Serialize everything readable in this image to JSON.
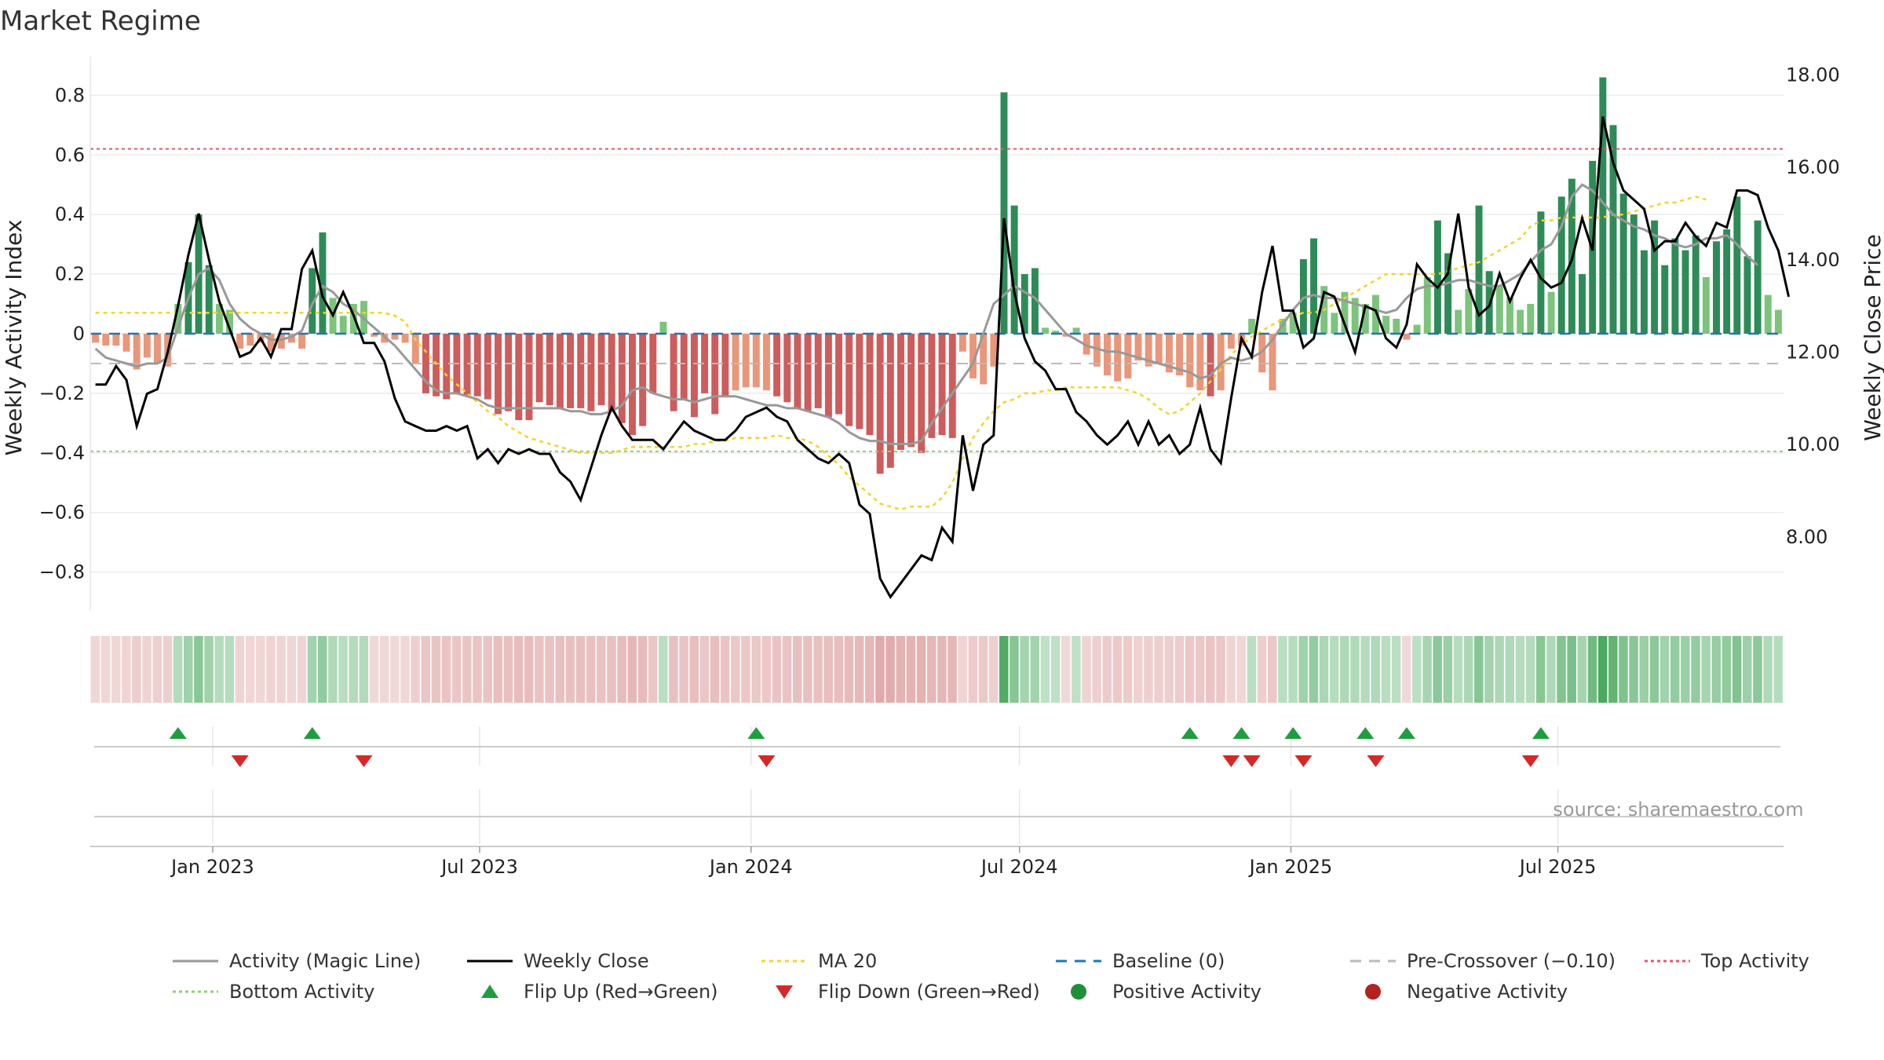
{
  "title": "Market Regime",
  "source": "source: sharemaestro.com",
  "chart_data": {
    "type": "bar",
    "ylabel_left": "Weekly Activity Index",
    "ylabel_right": "Weekly Close Price",
    "left_ticks": [
      "0.8",
      "0.6",
      "0.4",
      "0.2",
      "0",
      "−0.2",
      "−0.4",
      "−0.6",
      "−0.8"
    ],
    "right_ticks": [
      "18.00",
      "16.00",
      "14.00",
      "12.00",
      "10.00",
      "8.00"
    ],
    "ylim_left": [
      -0.93,
      0.93
    ],
    "ylim_right": [
      6.4,
      18.4
    ],
    "x_start": "2022-10-10",
    "x_tick_labels": [
      {
        "label": "Jan 2023",
        "date": "2023-01-01"
      },
      {
        "label": "Jul 2023",
        "date": "2023-07-01"
      },
      {
        "label": "Jan 2024",
        "date": "2024-01-01"
      },
      {
        "label": "Jul 2024",
        "date": "2024-07-01"
      },
      {
        "label": "Jan 2025",
        "date": "2025-01-01"
      },
      {
        "label": "Jul 2025",
        "date": "2025-07-01"
      }
    ],
    "activity": [
      -0.03,
      -0.04,
      -0.04,
      -0.06,
      -0.12,
      -0.08,
      -0.1,
      -0.11,
      0.1,
      0.24,
      0.4,
      0.23,
      0.1,
      0.08,
      -0.05,
      -0.04,
      -0.03,
      -0.06,
      -0.05,
      -0.03,
      -0.05,
      0.22,
      0.34,
      0.12,
      0.06,
      0.1,
      0.11,
      -0.01,
      -0.03,
      -0.02,
      -0.03,
      -0.1,
      -0.2,
      -0.21,
      -0.22,
      -0.2,
      -0.21,
      -0.21,
      -0.22,
      -0.27,
      -0.26,
      -0.29,
      -0.29,
      -0.23,
      -0.24,
      -0.25,
      -0.25,
      -0.25,
      -0.26,
      -0.24,
      -0.26,
      -0.3,
      -0.34,
      -0.31,
      -0.2,
      0.04,
      -0.26,
      -0.22,
      -0.28,
      -0.2,
      -0.27,
      -0.21,
      -0.19,
      -0.18,
      -0.18,
      -0.19,
      -0.21,
      -0.23,
      -0.25,
      -0.26,
      -0.25,
      -0.28,
      -0.27,
      -0.31,
      -0.32,
      -0.34,
      -0.47,
      -0.45,
      -0.39,
      -0.38,
      -0.4,
      -0.35,
      -0.34,
      -0.35,
      -0.06,
      -0.15,
      -0.17,
      -0.11,
      0.81,
      0.43,
      0.2,
      0.22,
      0.02,
      0.01,
      -0.01,
      0.02,
      -0.07,
      -0.11,
      -0.14,
      -0.16,
      -0.15,
      -0.09,
      -0.11,
      -0.1,
      -0.13,
      -0.14,
      -0.18,
      -0.19,
      -0.21,
      -0.19,
      -0.05,
      -0.04,
      0.05,
      -0.13,
      -0.19,
      0.05,
      0.07,
      0.25,
      0.32,
      0.16,
      0.07,
      0.14,
      0.12,
      0.1,
      0.13,
      0.06,
      0.05,
      -0.02,
      0.03,
      0.19,
      0.38,
      0.27,
      0.08,
      0.15,
      0.43,
      0.21,
      0.16,
      0.12,
      0.08,
      0.1,
      0.41,
      0.14,
      0.46,
      0.52,
      0.2,
      0.58,
      0.86,
      0.7,
      0.47,
      0.4,
      0.28,
      0.38,
      0.23,
      0.32,
      0.28,
      0.33,
      0.19,
      0.31,
      0.35,
      0.46,
      0.26,
      0.38,
      0.13,
      0.08
    ],
    "close": [
      11.3,
      11.3,
      11.7,
      11.4,
      10.4,
      11.1,
      11.2,
      12.0,
      13.0,
      14.1,
      15.0,
      14.0,
      13.1,
      12.5,
      11.9,
      12.0,
      12.3,
      11.9,
      12.5,
      12.5,
      13.8,
      14.2,
      13.2,
      12.8,
      13.3,
      12.8,
      12.2,
      12.2,
      11.8,
      11.0,
      10.5,
      10.4,
      10.3,
      10.3,
      10.4,
      10.3,
      10.4,
      9.7,
      9.9,
      9.6,
      9.9,
      9.8,
      9.9,
      9.8,
      9.8,
      9.4,
      9.2,
      8.8,
      9.5,
      10.2,
      10.8,
      10.4,
      10.1,
      10.1,
      10.1,
      9.9,
      10.2,
      10.5,
      10.3,
      10.2,
      10.1,
      10.1,
      10.3,
      10.6,
      10.7,
      10.8,
      10.6,
      10.5,
      10.1,
      9.9,
      9.7,
      9.6,
      9.8,
      9.6,
      8.7,
      8.5,
      7.1,
      6.7,
      7.0,
      7.3,
      7.6,
      7.5,
      8.2,
      7.9,
      10.2,
      9.0,
      10.0,
      10.2,
      14.9,
      13.3,
      12.3,
      11.8,
      11.6,
      11.2,
      11.2,
      10.7,
      10.5,
      10.2,
      10.0,
      10.2,
      10.5,
      10.0,
      10.5,
      10.0,
      10.2,
      9.8,
      10.0,
      10.8,
      9.9,
      9.6,
      11.0,
      12.3,
      11.9,
      13.3,
      14.3,
      12.9,
      12.9,
      12.1,
      12.3,
      13.3,
      13.2,
      12.6,
      12.0,
      13.0,
      12.9,
      12.3,
      12.1,
      12.6,
      13.9,
      13.6,
      13.4,
      13.7,
      15.0,
      13.4,
      12.8,
      13.0,
      13.7,
      13.1,
      13.6,
      14.0,
      13.6,
      13.4,
      13.5,
      14.0,
      14.9,
      14.2,
      17.1,
      16.1,
      15.5,
      15.3,
      15.1,
      14.2,
      14.4,
      14.4,
      14.8,
      14.5,
      14.3,
      14.8,
      14.7,
      15.5,
      15.5,
      15.4,
      14.7,
      14.2,
      13.2
    ],
    "activity_magic_line": [
      -0.05,
      -0.08,
      -0.09,
      -0.1,
      -0.11,
      -0.1,
      -0.1,
      -0.08,
      0.02,
      0.12,
      0.2,
      0.22,
      0.18,
      0.1,
      0.05,
      0.02,
      0.0,
      -0.02,
      -0.02,
      -0.01,
      0.01,
      0.1,
      0.16,
      0.14,
      0.1,
      0.08,
      0.05,
      0.02,
      -0.01,
      -0.04,
      -0.08,
      -0.12,
      -0.16,
      -0.19,
      -0.2,
      -0.2,
      -0.21,
      -0.22,
      -0.24,
      -0.25,
      -0.25,
      -0.25,
      -0.25,
      -0.25,
      -0.25,
      -0.25,
      -0.26,
      -0.26,
      -0.27,
      -0.27,
      -0.26,
      -0.24,
      -0.19,
      -0.18,
      -0.2,
      -0.21,
      -0.22,
      -0.22,
      -0.23,
      -0.22,
      -0.21,
      -0.21,
      -0.21,
      -0.22,
      -0.23,
      -0.24,
      -0.24,
      -0.25,
      -0.25,
      -0.26,
      -0.27,
      -0.28,
      -0.3,
      -0.33,
      -0.35,
      -0.36,
      -0.36,
      -0.37,
      -0.37,
      -0.37,
      -0.36,
      -0.3,
      -0.25,
      -0.2,
      -0.15,
      -0.1,
      0.0,
      0.1,
      0.13,
      0.16,
      0.14,
      0.12,
      0.08,
      0.04,
      0.0,
      -0.02,
      -0.04,
      -0.05,
      -0.06,
      -0.06,
      -0.07,
      -0.08,
      -0.09,
      -0.1,
      -0.11,
      -0.12,
      -0.13,
      -0.15,
      -0.14,
      -0.1,
      -0.08,
      -0.09,
      -0.08,
      -0.06,
      -0.02,
      0.03,
      0.08,
      0.12,
      0.13,
      0.12,
      0.12,
      0.11,
      0.1,
      0.09,
      0.08,
      0.07,
      0.08,
      0.12,
      0.15,
      0.16,
      0.16,
      0.17,
      0.18,
      0.18,
      0.17,
      0.16,
      0.16,
      0.18,
      0.2,
      0.24,
      0.28,
      0.3,
      0.36,
      0.46,
      0.5,
      0.48,
      0.44,
      0.4,
      0.38,
      0.36,
      0.35,
      0.33,
      0.32,
      0.3,
      0.29,
      0.3,
      0.32,
      0.32,
      0.33,
      0.3,
      0.26,
      0.23
    ],
    "ma20": [
      0.07,
      0.07,
      0.07,
      0.07,
      0.07,
      0.07,
      0.07,
      0.07,
      0.07,
      0.07,
      0.07,
      0.07,
      0.07,
      0.07,
      0.07,
      0.07,
      0.07,
      0.07,
      0.07,
      0.07,
      0.07,
      0.07,
      0.07,
      0.07,
      0.07,
      0.07,
      0.07,
      0.07,
      0.07,
      0.06,
      0.04,
      -0.02,
      -0.06,
      -0.1,
      -0.14,
      -0.17,
      -0.2,
      -0.23,
      -0.26,
      -0.28,
      -0.31,
      -0.33,
      -0.35,
      -0.36,
      -0.37,
      -0.38,
      -0.39,
      -0.4,
      -0.4,
      -0.4,
      -0.4,
      -0.39,
      -0.38,
      -0.38,
      -0.38,
      -0.38,
      -0.38,
      -0.38,
      -0.37,
      -0.37,
      -0.36,
      -0.36,
      -0.35,
      -0.35,
      -0.35,
      -0.35,
      -0.34,
      -0.35,
      -0.35,
      -0.36,
      -0.38,
      -0.41,
      -0.44,
      -0.48,
      -0.51,
      -0.54,
      -0.57,
      -0.58,
      -0.59,
      -0.58,
      -0.58,
      -0.58,
      -0.55,
      -0.5,
      -0.42,
      -0.35,
      -0.3,
      -0.26,
      -0.23,
      -0.22,
      -0.2,
      -0.2,
      -0.19,
      -0.19,
      -0.18,
      -0.18,
      -0.18,
      -0.18,
      -0.18,
      -0.18,
      -0.19,
      -0.2,
      -0.22,
      -0.25,
      -0.27,
      -0.26,
      -0.23,
      -0.2,
      -0.16,
      -0.12,
      -0.07,
      -0.04,
      -0.01,
      0.01,
      0.03,
      0.05,
      0.06,
      0.07,
      0.07,
      0.08,
      0.1,
      0.12,
      0.14,
      0.16,
      0.18,
      0.2,
      0.2,
      0.2,
      0.2,
      0.2,
      0.2,
      0.21,
      0.22,
      0.23,
      0.24,
      0.26,
      0.28,
      0.3,
      0.32,
      0.36,
      0.38,
      0.38,
      0.39,
      0.39,
      0.39,
      0.39,
      0.39,
      0.4,
      0.4,
      0.41,
      0.42,
      0.43,
      0.44,
      0.44,
      0.45,
      0.46,
      0.45
    ],
    "reference_lines": {
      "baseline": 0,
      "pre_crossover": -0.1,
      "top_activity": 0.62,
      "bottom_activity": -0.395
    },
    "flip_up_weeks": [
      8,
      21,
      64,
      106,
      111,
      116,
      123,
      127,
      140
    ],
    "flip_down_weeks": [
      14,
      26,
      65,
      110,
      112,
      117,
      124,
      139
    ],
    "legend": [
      {
        "label": "Activity (Magic Line)",
        "kind": "line",
        "color": "#999999",
        "dash": ""
      },
      {
        "label": "Weekly Close",
        "kind": "line",
        "color": "#000000",
        "dash": ""
      },
      {
        "label": "MA 20",
        "kind": "line",
        "color": "#f2d52a",
        "dash": "5,5"
      },
      {
        "label": "Baseline (0)",
        "kind": "line",
        "color": "#1f77b4",
        "dash": "14,10"
      },
      {
        "label": "Pre-Crossover (−0.10)",
        "kind": "line",
        "color": "#bbbbbb",
        "dash": "14,10"
      },
      {
        "label": "Top Activity",
        "kind": "line",
        "color": "#e05a6d",
        "dash": "4,4"
      },
      {
        "label": "Bottom Activity",
        "kind": "line",
        "color": "#8fd07a",
        "dash": "4,4"
      },
      {
        "label": "Flip Up (Red→Green)",
        "kind": "tri-up",
        "color": "#1f9e3f"
      },
      {
        "label": "Flip Down (Green→Red)",
        "kind": "tri-down",
        "color": "#d62828"
      },
      {
        "label": "Positive Activity",
        "kind": "dot",
        "color": "#1f8f3a"
      },
      {
        "label": "Negative Activity",
        "kind": "dot",
        "color": "#b22222"
      }
    ],
    "colors": {
      "pos_strong": "#2e8b57",
      "pos_light": "#7cc47c",
      "neg_strong": "#cd5c5c",
      "neg_light": "#e9967a"
    }
  }
}
